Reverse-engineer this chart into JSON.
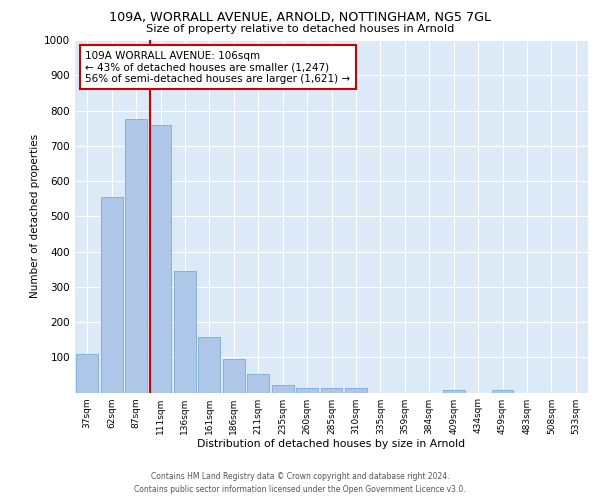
{
  "title": "109A, WORRALL AVENUE, ARNOLD, NOTTINGHAM, NG5 7GL",
  "subtitle": "Size of property relative to detached houses in Arnold",
  "xlabel": "Distribution of detached houses by size in Arnold",
  "ylabel": "Number of detached properties",
  "categories": [
    "37sqm",
    "62sqm",
    "87sqm",
    "111sqm",
    "136sqm",
    "161sqm",
    "186sqm",
    "211sqm",
    "235sqm",
    "260sqm",
    "285sqm",
    "310sqm",
    "335sqm",
    "359sqm",
    "384sqm",
    "409sqm",
    "434sqm",
    "459sqm",
    "483sqm",
    "508sqm",
    "533sqm"
  ],
  "values": [
    110,
    555,
    775,
    760,
    345,
    158,
    95,
    52,
    22,
    14,
    12,
    12,
    0,
    0,
    0,
    8,
    0,
    8,
    0,
    0,
    0
  ],
  "bar_color": "#aec6e8",
  "bar_edge_color": "#7aadd4",
  "bg_color": "#dce9f7",
  "grid_color": "#ffffff",
  "vline_color": "#cc0000",
  "annotation_text": "109A WORRALL AVENUE: 106sqm\n← 43% of detached houses are smaller (1,247)\n56% of semi-detached houses are larger (1,621) →",
  "annotation_box_color": "#ffffff",
  "annotation_box_edge": "#cc0000",
  "ylim": [
    0,
    1000
  ],
  "yticks": [
    0,
    100,
    200,
    300,
    400,
    500,
    600,
    700,
    800,
    900,
    1000
  ],
  "footer_line1": "Contains HM Land Registry data © Crown copyright and database right 2024.",
  "footer_line2": "Contains public sector information licensed under the Open Government Licence v3.0."
}
